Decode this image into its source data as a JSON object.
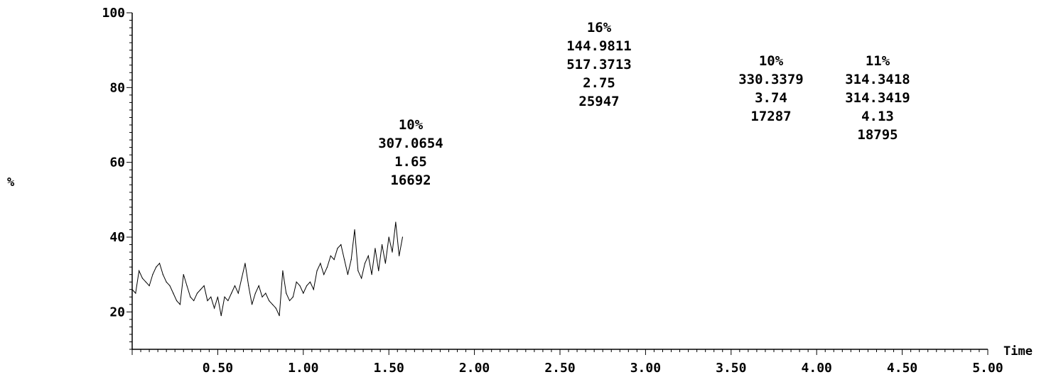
{
  "chart_data": {
    "type": "line",
    "title": "",
    "xlabel": "Time",
    "ylabel": "%",
    "xlim": [
      0.0,
      5.0
    ],
    "ylim": [
      10,
      100
    ],
    "x_ticks": [
      "0.50",
      "1.00",
      "1.50",
      "2.00",
      "2.50",
      "3.00",
      "3.50",
      "4.00",
      "4.50",
      "5.00"
    ],
    "y_ticks": [
      "20",
      "40",
      "60",
      "80",
      "100"
    ],
    "colors": {
      "trace": "#000000",
      "red_peak": "#ff0000",
      "green_peak": "#00cc00"
    },
    "series": [
      {
        "points": [
          [
            0.0,
            26
          ],
          [
            0.02,
            25
          ],
          [
            0.04,
            31
          ],
          [
            0.06,
            29
          ],
          [
            0.08,
            28
          ],
          [
            0.1,
            27
          ],
          [
            0.12,
            30
          ],
          [
            0.14,
            32
          ],
          [
            0.16,
            33
          ],
          [
            0.18,
            30
          ],
          [
            0.2,
            28
          ],
          [
            0.22,
            27
          ],
          [
            0.24,
            25
          ],
          [
            0.26,
            23
          ],
          [
            0.28,
            22
          ],
          [
            0.3,
            30
          ],
          [
            0.32,
            27
          ],
          [
            0.34,
            24
          ],
          [
            0.36,
            23
          ],
          [
            0.38,
            25
          ],
          [
            0.4,
            26
          ],
          [
            0.42,
            27
          ],
          [
            0.44,
            23
          ],
          [
            0.46,
            24
          ],
          [
            0.48,
            21
          ],
          [
            0.5,
            24
          ],
          [
            0.52,
            19
          ],
          [
            0.54,
            24
          ],
          [
            0.56,
            23
          ],
          [
            0.58,
            25
          ],
          [
            0.6,
            27
          ],
          [
            0.62,
            25
          ],
          [
            0.64,
            29
          ],
          [
            0.66,
            33
          ],
          [
            0.68,
            27
          ],
          [
            0.7,
            22
          ],
          [
            0.72,
            25
          ],
          [
            0.74,
            27
          ],
          [
            0.76,
            24
          ],
          [
            0.78,
            25
          ],
          [
            0.8,
            23
          ],
          [
            0.82,
            22
          ],
          [
            0.84,
            21
          ],
          [
            0.86,
            19
          ],
          [
            0.88,
            31
          ],
          [
            0.9,
            25
          ],
          [
            0.92,
            23
          ],
          [
            0.94,
            24
          ],
          [
            0.96,
            28
          ],
          [
            0.98,
            27
          ],
          [
            1.0,
            25
          ],
          [
            1.02,
            27
          ],
          [
            1.04,
            28
          ],
          [
            1.06,
            26
          ],
          [
            1.08,
            31
          ],
          [
            1.1,
            33
          ],
          [
            1.12,
            30
          ],
          [
            1.14,
            32
          ],
          [
            1.16,
            35
          ],
          [
            1.18,
            34
          ],
          [
            1.2,
            37
          ],
          [
            1.22,
            38
          ],
          [
            1.24,
            34
          ],
          [
            1.26,
            30
          ],
          [
            1.28,
            34
          ],
          [
            1.3,
            42
          ],
          [
            1.32,
            31
          ],
          [
            1.34,
            29
          ],
          [
            1.36,
            33
          ],
          [
            1.38,
            35
          ],
          [
            1.4,
            30
          ],
          [
            1.42,
            37
          ],
          [
            1.44,
            31
          ],
          [
            1.46,
            38
          ],
          [
            1.48,
            33
          ],
          [
            1.5,
            40
          ],
          [
            1.52,
            36
          ],
          [
            1.54,
            44
          ],
          [
            1.56,
            35
          ],
          [
            1.58,
            40
          ]
        ]
      }
    ],
    "annotations": [
      {
        "lines": [
          "10%",
          "307.0654",
          "1.65",
          "16692"
        ],
        "color": "#00cc00"
      },
      {
        "lines": [
          "16%",
          "144.9811",
          "517.3713",
          "2.75",
          "25947"
        ],
        "color": "#ff0000"
      },
      {
        "lines": [
          "10%",
          "330.3379",
          "3.74",
          "17287"
        ],
        "color": "#00cc00"
      },
      {
        "lines": [
          "11%",
          "314.3418",
          "314.3419",
          "4.13",
          "18795"
        ],
        "color": "#ff0000"
      }
    ]
  }
}
